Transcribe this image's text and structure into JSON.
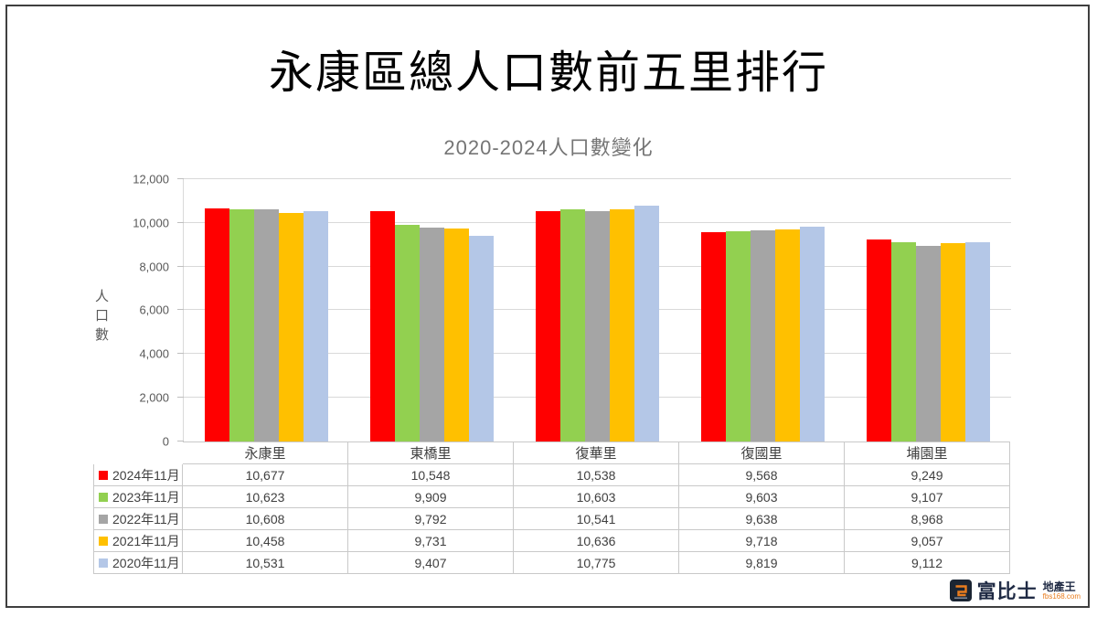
{
  "page": {
    "title": "永康區總人口數前五里排行",
    "subtitle": "2020-2024人口數變化"
  },
  "chart_data": {
    "type": "bar",
    "title": "永康區總人口數前五里排行",
    "subtitle": "2020-2024人口數變化",
    "xlabel": "",
    "ylabel": "人口數",
    "ylim": [
      0,
      12000
    ],
    "yticks": [
      0,
      2000,
      4000,
      6000,
      8000,
      10000,
      12000
    ],
    "grid": true,
    "legend_position": "data-table-left-keys",
    "data_table_shown": true,
    "categories": [
      "永康里",
      "東橋里",
      "復華里",
      "復國里",
      "埔園里"
    ],
    "series": [
      {
        "name": "2024年11月",
        "color": "#ff0000",
        "values": [
          10677,
          10548,
          10538,
          9568,
          9249
        ]
      },
      {
        "name": "2023年11月",
        "color": "#92d050",
        "values": [
          10623,
          9909,
          10603,
          9603,
          9107
        ]
      },
      {
        "name": "2022年11月",
        "color": "#a5a5a5",
        "values": [
          10608,
          9792,
          10541,
          9638,
          8968
        ]
      },
      {
        "name": "2021年11月",
        "color": "#ffc000",
        "values": [
          10458,
          9731,
          10636,
          9718,
          9057
        ]
      },
      {
        "name": "2020年11月",
        "color": "#b4c7e7",
        "values": [
          10531,
          9407,
          10775,
          9819,
          9112
        ]
      }
    ],
    "colors": {
      "gridline": "#d9d9d9",
      "axis_text": "#595959",
      "table_border": "#c9c9c9",
      "table_text": "#404040"
    }
  },
  "logo": {
    "brand": "富比士",
    "tagline": "地產王",
    "site": "fbs168.com"
  }
}
